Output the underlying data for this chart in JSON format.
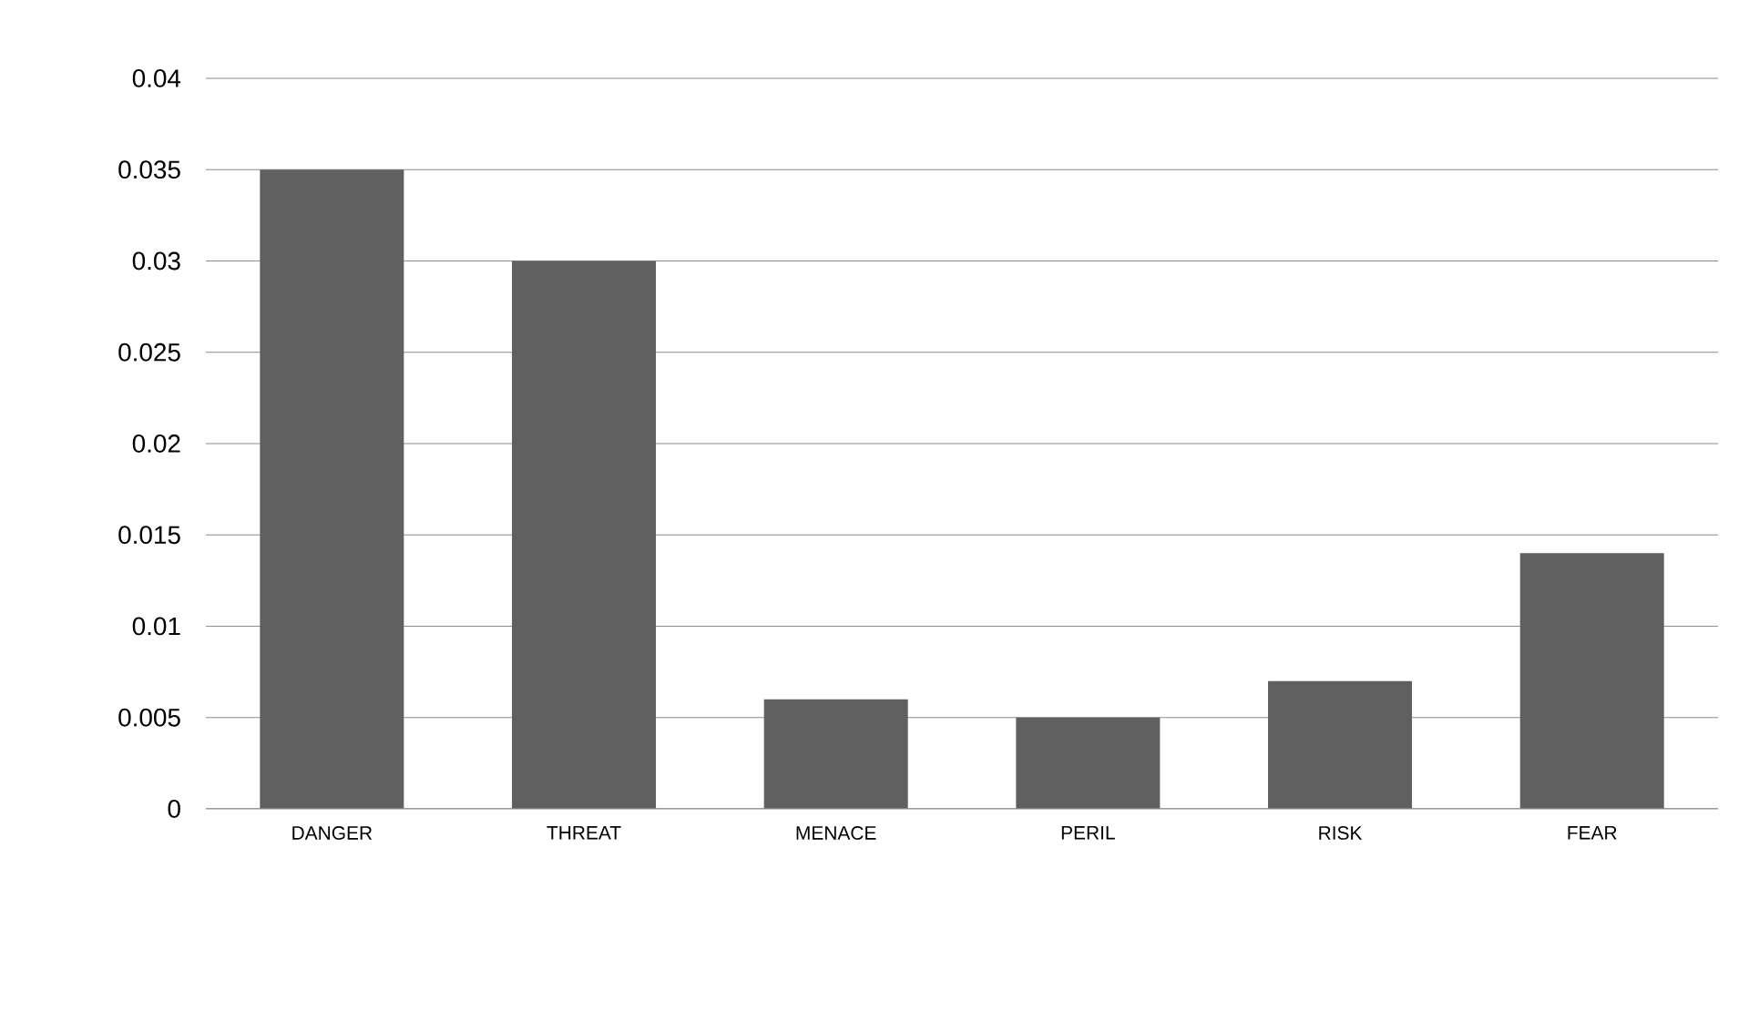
{
  "chart_data": {
    "type": "bar",
    "categories": [
      "DANGER",
      "THREAT",
      "MENACE",
      "PERIL",
      "RISK",
      "FEAR"
    ],
    "values": [
      0.035,
      0.03,
      0.006,
      0.005,
      0.007,
      0.014
    ],
    "color": "#606060",
    "ylim": [
      0,
      0.04
    ],
    "yticks": [
      0,
      {
        "value": 0.005,
        "label": "0.005"
      },
      {
        "value": 0.01,
        "label": "0.01"
      },
      {
        "value": 0.015,
        "label": "0.015"
      },
      {
        "value": 0.02,
        "label": "0.02"
      },
      {
        "value": 0.025,
        "label": "0.025"
      },
      {
        "value": 0.03,
        "label": "0.03"
      },
      {
        "value": 0.035,
        "label": "0.035"
      },
      {
        "value": 0.04,
        "label": "0.04"
      }
    ],
    "grid": "y",
    "legend": false
  }
}
